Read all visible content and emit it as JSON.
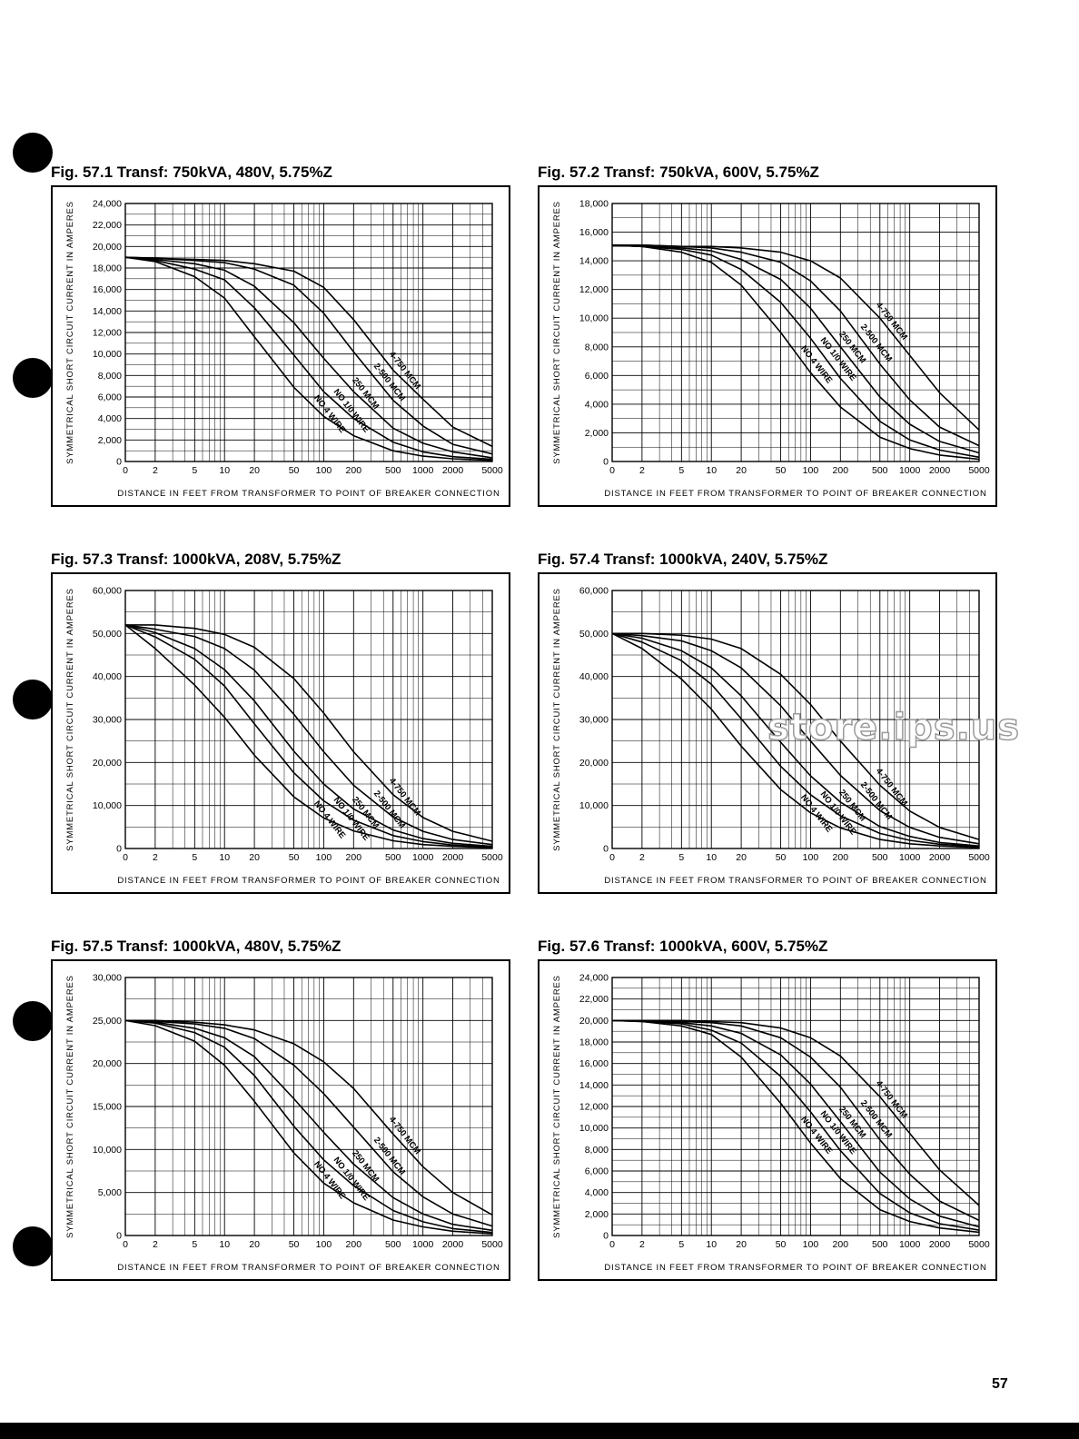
{
  "page": {
    "page_number": "57",
    "watermark": "store.ips.us"
  },
  "curve_labels": [
    "4-750 MCM",
    "2-500 MCM",
    "250 MCM",
    "NO 1/0 WIRE",
    "NO 4 WIRE"
  ],
  "chart_data": [
    {
      "type": "line",
      "title": "Fig. 57.1 Transf: 750kVA, 480V, 5.75%Z",
      "xlabel": "DISTANCE IN FEET FROM TRANSFORMER TO POINT OF BREAKER CONNECTION",
      "ylabel": "SYMMETRICAL SHORT CIRCUIT CURRENT IN AMPERES",
      "x_scale": "log",
      "xlim": [
        1,
        5000
      ],
      "ylim": [
        0,
        24000
      ],
      "xticks": [
        "0",
        "2",
        "5",
        "10",
        "20",
        "50",
        "100",
        "200",
        "500",
        "1000",
        "2000",
        "5000"
      ],
      "yticks": [
        "0",
        "2,000",
        "4,000",
        "6,000",
        "8,000",
        "10,000",
        "12,000",
        "14,000",
        "16,000",
        "18,000",
        "20,000",
        "22,000",
        "24,000"
      ],
      "x": [
        1,
        2,
        5,
        10,
        20,
        50,
        100,
        200,
        500,
        1000,
        2000,
        5000
      ],
      "series": [
        {
          "name": "4-750 MCM",
          "values": [
            19000,
            18900,
            18800,
            18700,
            18400,
            17700,
            16200,
            13200,
            8500,
            5800,
            3200,
            1400
          ]
        },
        {
          "name": "2-500 MCM",
          "values": [
            19000,
            18900,
            18700,
            18500,
            17900,
            16400,
            13800,
            10200,
            5700,
            3300,
            1600,
            700
          ]
        },
        {
          "name": "250 MCM",
          "values": [
            19000,
            18800,
            18400,
            17800,
            16300,
            12900,
            9600,
            6500,
            3100,
            1700,
            900,
            350
          ]
        },
        {
          "name": "NO 1/0 WIRE",
          "values": [
            19000,
            18700,
            17900,
            16900,
            14300,
            9900,
            6500,
            4000,
            1800,
            900,
            450,
            200
          ]
        },
        {
          "name": "NO 4 WIRE",
          "values": [
            19000,
            18600,
            17200,
            15200,
            11600,
            6900,
            4200,
            2400,
            1000,
            500,
            250,
            100
          ]
        }
      ]
    },
    {
      "type": "line",
      "title": "Fig. 57.2 Transf: 750kVA, 600V, 5.75%Z",
      "xlabel": "DISTANCE IN FEET FROM TRANSFORMER TO POINT OF BREAKER CONNECTION",
      "ylabel": "SYMMETRICAL SHORT CIRCUIT CURRENT IN AMPERES",
      "x_scale": "log",
      "xlim": [
        1,
        5000
      ],
      "ylim": [
        0,
        18000
      ],
      "xticks": [
        "0",
        "2",
        "5",
        "10",
        "20",
        "50",
        "100",
        "200",
        "500",
        "1000",
        "2000",
        "5000"
      ],
      "yticks": [
        "0",
        "2,000",
        "4,000",
        "6,000",
        "8,000",
        "10,000",
        "12,000",
        "14,000",
        "16,000",
        "18,000"
      ],
      "x": [
        1,
        2,
        5,
        10,
        20,
        50,
        100,
        200,
        500,
        1000,
        2000,
        5000
      ],
      "series": [
        {
          "name": "4-750 MCM",
          "values": [
            15100,
            15100,
            15000,
            15000,
            14900,
            14600,
            14000,
            12800,
            10000,
            7400,
            4800,
            2200
          ]
        },
        {
          "name": "2-500 MCM",
          "values": [
            15100,
            15100,
            15000,
            14900,
            14600,
            13900,
            12600,
            10500,
            6800,
            4300,
            2400,
            1100
          ]
        },
        {
          "name": "250 MCM",
          "values": [
            15100,
            15000,
            14900,
            14700,
            14100,
            12700,
            10700,
            8000,
            4500,
            2600,
            1400,
            600
          ]
        },
        {
          "name": "NO 1/0 WIRE",
          "values": [
            15100,
            15000,
            14800,
            14400,
            13400,
            11100,
            8600,
            5800,
            2800,
            1500,
            800,
            300
          ]
        },
        {
          "name": "NO 4 WIRE",
          "values": [
            15100,
            15000,
            14600,
            13900,
            12300,
            9000,
            6200,
            3800,
            1700,
            900,
            450,
            150
          ]
        }
      ]
    },
    {
      "type": "line",
      "title": "Fig. 57.3 Transf: 1000kVA, 208V, 5.75%Z",
      "xlabel": "DISTANCE IN FEET FROM TRANSFORMER TO POINT OF BREAKER CONNECTION",
      "ylabel": "SYMMETRICAL SHORT CIRCUIT CURRENT IN AMPERES",
      "x_scale": "log",
      "xlim": [
        1,
        5000
      ],
      "ylim": [
        0,
        60000
      ],
      "xticks": [
        "0",
        "2",
        "5",
        "10",
        "20",
        "50",
        "100",
        "200",
        "500",
        "1000",
        "2000",
        "5000"
      ],
      "yticks": [
        "0",
        "10,000",
        "20,000",
        "30,000",
        "40,000",
        "50,000",
        "60,000"
      ],
      "x": [
        1,
        2,
        5,
        10,
        20,
        50,
        100,
        200,
        500,
        1000,
        2000,
        5000
      ],
      "series": [
        {
          "name": "4-750 MCM",
          "values": [
            52000,
            52000,
            51200,
            49800,
            46800,
            39500,
            31500,
            22500,
            12500,
            7200,
            4000,
            1700
          ]
        },
        {
          "name": "2-500 MCM",
          "values": [
            52000,
            51000,
            49300,
            46500,
            41500,
            31200,
            22500,
            14700,
            7300,
            4000,
            2100,
            900
          ]
        },
        {
          "name": "250 MCM",
          "values": [
            52000,
            50200,
            46500,
            41600,
            34300,
            22600,
            15000,
            9200,
            4300,
            2300,
            1200,
            500
          ]
        },
        {
          "name": "NO 1/0 WIRE",
          "values": [
            52000,
            49200,
            44000,
            37800,
            29000,
            17600,
            11100,
            6600,
            3000,
            1600,
            800,
            300
          ]
        },
        {
          "name": "NO 4 WIRE",
          "values": [
            52000,
            46500,
            38000,
            30500,
            21700,
            12000,
            7100,
            4100,
            1800,
            900,
            500,
            200
          ]
        }
      ]
    },
    {
      "type": "line",
      "title": "Fig. 57.4 Transf: 1000kVA, 240V, 5.75%Z",
      "xlabel": "DISTANCE IN FEET FROM TRANSFORMER TO POINT OF BREAKER CONNECTION",
      "ylabel": "SYMMETRICAL SHORT CIRCUIT CURRENT IN AMPERES",
      "x_scale": "log",
      "xlim": [
        1,
        5000
      ],
      "ylim": [
        0,
        60000
      ],
      "xticks": [
        "0",
        "2",
        "5",
        "10",
        "20",
        "50",
        "100",
        "200",
        "500",
        "1000",
        "2000",
        "5000"
      ],
      "yticks": [
        "0",
        "10,000",
        "20,000",
        "30,000",
        "40,000",
        "50,000",
        "60,000"
      ],
      "x": [
        1,
        2,
        5,
        10,
        20,
        50,
        100,
        200,
        500,
        1000,
        2000,
        5000
      ],
      "series": [
        {
          "name": "4-750 MCM",
          "values": [
            50000,
            50000,
            49600,
            48700,
            46500,
            40500,
            33500,
            25000,
            14700,
            8700,
            4900,
            2100
          ]
        },
        {
          "name": "2-500 MCM",
          "values": [
            50000,
            49500,
            48300,
            46000,
            42000,
            33200,
            25000,
            17000,
            8800,
            4900,
            2600,
            1100
          ]
        },
        {
          "name": "250 MCM",
          "values": [
            50000,
            48900,
            46000,
            42000,
            35500,
            24700,
            16900,
            10800,
            5100,
            2800,
            1400,
            600
          ]
        },
        {
          "name": "NO 1/0 WIRE",
          "values": [
            50000,
            48000,
            43700,
            38200,
            30200,
            19100,
            12500,
            7600,
            3500,
            1900,
            1000,
            400
          ]
        },
        {
          "name": "NO 4 WIRE",
          "values": [
            50000,
            46500,
            39400,
            32400,
            23800,
            13700,
            8300,
            4800,
            2100,
            1100,
            600,
            200
          ]
        }
      ]
    },
    {
      "type": "line",
      "title": "Fig. 57.5 Transf: 1000kVA, 480V, 5.75%Z",
      "xlabel": "DISTANCE IN FEET FROM TRANSFORMER TO POINT OF BREAKER CONNECTION",
      "ylabel": "SYMMETRICAL SHORT CIRCUIT CURRENT IN AMPERES",
      "x_scale": "log",
      "xlim": [
        1,
        5000
      ],
      "ylim": [
        0,
        30000
      ],
      "xticks": [
        "0",
        "2",
        "5",
        "10",
        "20",
        "50",
        "100",
        "200",
        "500",
        "1000",
        "2000",
        "5000"
      ],
      "yticks": [
        "0",
        "5,000",
        "10,000",
        "15,000",
        "20,000",
        "25,000",
        "30,000"
      ],
      "x": [
        1,
        2,
        5,
        10,
        20,
        50,
        100,
        200,
        500,
        1000,
        2000,
        5000
      ],
      "series": [
        {
          "name": "4-750 MCM",
          "values": [
            25000,
            25000,
            24800,
            24500,
            23900,
            22300,
            20200,
            17100,
            11800,
            8000,
            5000,
            2400
          ]
        },
        {
          "name": "2-500 MCM",
          "values": [
            25000,
            24900,
            24600,
            24100,
            22900,
            19800,
            16500,
            12600,
            7400,
            4500,
            2500,
            1100
          ]
        },
        {
          "name": "250 MCM",
          "values": [
            25000,
            24800,
            24100,
            23000,
            20800,
            15900,
            12000,
            8300,
            4400,
            2500,
            1300,
            600
          ]
        },
        {
          "name": "NO 1/0 WIRE",
          "values": [
            25000,
            24700,
            23600,
            21900,
            18600,
            12700,
            8800,
            5800,
            2900,
            1600,
            800,
            350
          ]
        },
        {
          "name": "NO 4 WIRE",
          "values": [
            25000,
            24400,
            22600,
            19800,
            15600,
            9600,
            6100,
            3800,
            1800,
            1000,
            500,
            200
          ]
        }
      ]
    },
    {
      "type": "line",
      "title": "Fig. 57.6 Transf: 1000kVA, 600V, 5.75%Z",
      "xlabel": "DISTANCE IN FEET FROM TRANSFORMER TO POINT OF BREAKER CONNECTION",
      "ylabel": "SYMMETRICAL SHORT CIRCUIT CURRENT IN AMPERES",
      "x_scale": "log",
      "xlim": [
        1,
        5000
      ],
      "ylim": [
        0,
        24000
      ],
      "xticks": [
        "0",
        "2",
        "5",
        "10",
        "20",
        "50",
        "100",
        "200",
        "500",
        "1000",
        "2000",
        "5000"
      ],
      "yticks": [
        "0",
        "2,000",
        "4,000",
        "6,000",
        "8,000",
        "10,000",
        "12,000",
        "14,000",
        "16,000",
        "18,000",
        "20,000",
        "22,000",
        "24,000"
      ],
      "x": [
        1,
        2,
        5,
        10,
        20,
        50,
        100,
        200,
        500,
        1000,
        2000,
        5000
      ],
      "series": [
        {
          "name": "4-750 MCM",
          "values": [
            20000,
            20000,
            20000,
            19900,
            19800,
            19300,
            18400,
            16700,
            12900,
            9500,
            6100,
            2800
          ]
        },
        {
          "name": "2-500 MCM",
          "values": [
            20000,
            20000,
            19900,
            19800,
            19500,
            18400,
            16600,
            13800,
            8900,
            5700,
            3200,
            1400
          ]
        },
        {
          "name": "250 MCM",
          "values": [
            20000,
            20000,
            19800,
            19500,
            18800,
            16800,
            14100,
            10600,
            5900,
            3400,
            1800,
            800
          ]
        },
        {
          "name": "NO 1/0 WIRE",
          "values": [
            20000,
            19900,
            19700,
            19100,
            17900,
            14800,
            11500,
            7900,
            3900,
            2100,
            1100,
            500
          ]
        },
        {
          "name": "NO 4 WIRE",
          "values": [
            20000,
            19900,
            19500,
            18700,
            16600,
            12300,
            8600,
            5300,
            2400,
            1300,
            700,
            300
          ]
        }
      ]
    }
  ]
}
